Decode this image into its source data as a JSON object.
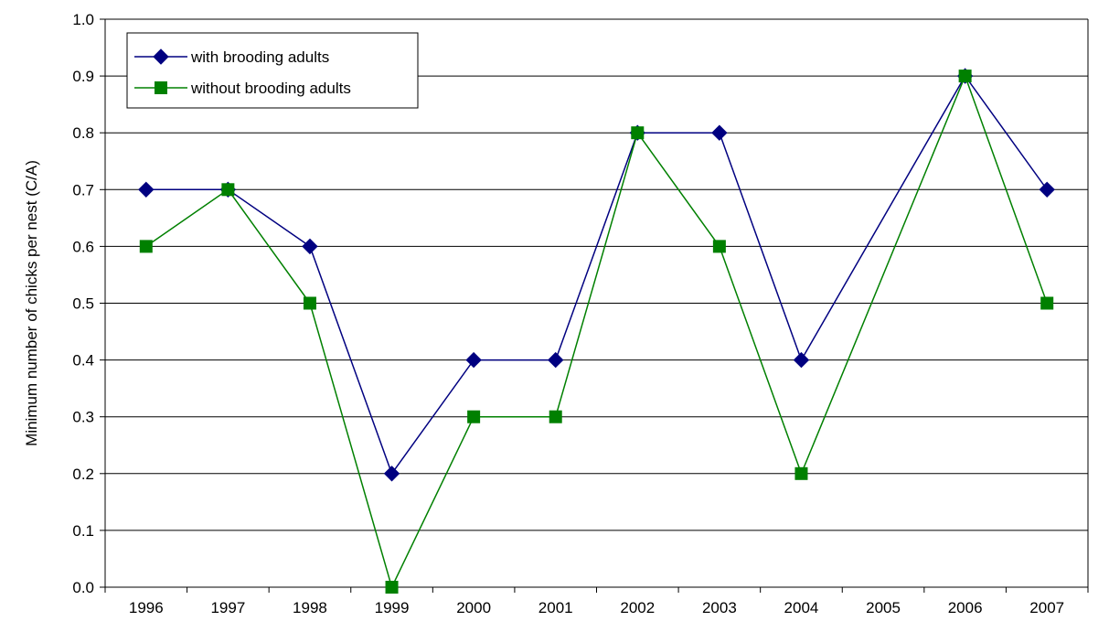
{
  "chart_data": {
    "type": "line",
    "categories": [
      "1996",
      "1997",
      "1998",
      "1999",
      "2000",
      "2001",
      "2002",
      "2003",
      "2004",
      "2005",
      "2006",
      "2007"
    ],
    "title": "",
    "xlabel": "",
    "ylabel": "Minimum number of chicks per nest (C/A)",
    "ylim": [
      0.0,
      1.0
    ],
    "yticks": [
      "0.0",
      "0.1",
      "0.2",
      "0.3",
      "0.4",
      "0.5",
      "0.6",
      "0.7",
      "0.8",
      "0.9",
      "1.0"
    ],
    "grid": "horizontal",
    "legend_position": "top-left",
    "series": [
      {
        "name": "with brooding adults",
        "color": "#000080",
        "marker": "diamond",
        "values": [
          0.7,
          0.7,
          0.6,
          0.2,
          0.4,
          0.4,
          0.8,
          0.8,
          0.4,
          null,
          0.9,
          0.7
        ]
      },
      {
        "name": "without brooding adults",
        "color": "#008000",
        "marker": "square",
        "values": [
          0.6,
          0.7,
          0.5,
          0.0,
          0.3,
          0.3,
          0.8,
          0.6,
          0.2,
          null,
          0.9,
          0.5
        ]
      }
    ]
  }
}
